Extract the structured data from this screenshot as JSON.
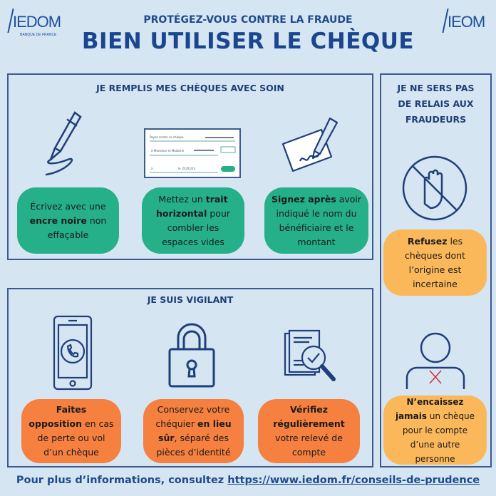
{
  "header": {
    "logo_left": "IEDOM",
    "logo_left_sub": "BANQUE DE FRANCE",
    "logo_right": "IEOM",
    "subtitle": "PROTÉGEZ-VOUS CONTRE LA FRAUDE",
    "title": "BIEN UTILISER LE CHÈQUE"
  },
  "panel_fill": {
    "title": "JE REMPLIS MES CHÈQUES AVEC SOIN",
    "cards": [
      {
        "icon": "fountain-pen-icon",
        "a": "Écrivez avec une ",
        "b": "encre noire",
        "c": " non effaçable"
      },
      {
        "icon": "cheque-icon",
        "a": "Mettez un ",
        "b": "trait horizontal",
        "c": " pour combler les espaces vides"
      },
      {
        "icon": "signing-cheque-icon",
        "a": "",
        "b": "Signez après",
        "c": " avoir indiqué le nom du bénéficiaire et le montant"
      }
    ],
    "cheque": {
      "line1": "Payez contre ce chèque",
      "line2": "A Monsieur et Madame",
      "at": "à",
      "on": "le",
      "date": "01/01/23"
    }
  },
  "panel_vigilant": {
    "title": "JE SUIS VIGILANT",
    "cards": [
      {
        "icon": "phone-call-icon",
        "a": "",
        "b": "Faites opposition",
        "c": " en cas de perte ou vol d’un chèque"
      },
      {
        "icon": "padlock-icon",
        "a": "Conservez votre chéquier ",
        "b": "en lieu sûr",
        "c": ", séparé des pièces d’identité"
      },
      {
        "icon": "document-check-icon",
        "a": "",
        "b": "Vérifiez régulièrement",
        "c": " votre relevé de compte"
      }
    ]
  },
  "panel_relay": {
    "title": "JE NE SERS PAS DE RELAIS AUX FRAUDEURS",
    "cards": [
      {
        "icon": "stop-hand-icon",
        "a": "",
        "b": "Refusez",
        "c": " les chèques dont l’origine est incertaine"
      },
      {
        "icon": "person-cross-icon",
        "a": "",
        "b": "N’encaissez jamais",
        "c": " un chèque pour le compte d’une autre personne"
      }
    ]
  },
  "footer": {
    "text": "Pour plus d’informations, consultez ",
    "link": "https://www.iedom.fr/conseils-de-prudence"
  },
  "colors": {
    "green": "#25b08a",
    "orange": "#f5803f",
    "yellow": "#fbb85a",
    "navy": "#1a4690"
  }
}
